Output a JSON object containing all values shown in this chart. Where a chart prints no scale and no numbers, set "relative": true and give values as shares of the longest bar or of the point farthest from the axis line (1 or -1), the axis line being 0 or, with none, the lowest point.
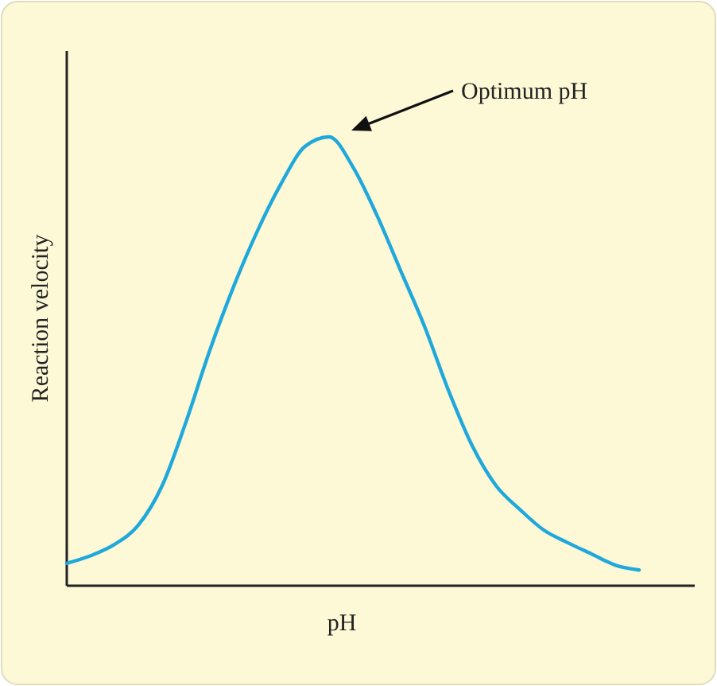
{
  "chart_data": {
    "type": "line",
    "relative": true,
    "xlabel": "pH",
    "ylabel": "Reaction velocity",
    "annotations": [
      "Optimum pH"
    ],
    "categories": [
      null,
      null,
      null,
      null,
      null,
      null,
      null,
      null,
      null,
      null,
      null,
      null,
      null,
      null,
      null,
      null,
      null,
      null,
      null,
      null,
      null,
      null,
      null,
      null,
      null
    ],
    "series": [
      {
        "color": "#1fa8dc",
        "values": [
          0.05,
          0.067,
          0.092,
          0.135,
          0.223,
          0.365,
          0.525,
          0.667,
          0.791,
          0.897,
          0.979,
          1,
          0.933,
          0.826,
          0.702,
          0.578,
          0.436,
          0.312,
          0.223,
          0.17,
          0.124,
          0.096,
          0.071,
          0.046,
          0.035
        ]
      }
    ],
    "marker": "none",
    "line_style": "solid"
  }
}
